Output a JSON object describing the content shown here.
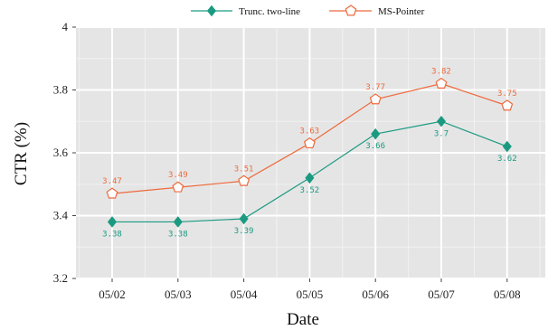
{
  "chart_data": {
    "type": "line",
    "x": [
      "05/02",
      "05/03",
      "05/04",
      "05/05",
      "05/06",
      "05/07",
      "05/08"
    ],
    "series": [
      {
        "name": "Trunc. two-line",
        "values": [
          3.38,
          3.38,
          3.39,
          3.52,
          3.66,
          3.7,
          3.62
        ],
        "labels": [
          "3.38",
          "3.38",
          "3.39",
          "3.52",
          "3.66",
          "3.7",
          "3.62"
        ],
        "color": "#1a9a80",
        "marker": "diamond-filled"
      },
      {
        "name": "MS-Pointer",
        "values": [
          3.47,
          3.49,
          3.51,
          3.63,
          3.77,
          3.82,
          3.75
        ],
        "labels": [
          "3.47",
          "3.49",
          "3.51",
          "3.63",
          "3.77",
          "3.82",
          "3.75"
        ],
        "color": "#ee6a3c",
        "marker": "pentagon-open"
      }
    ],
    "xlabel": "Date",
    "ylabel": "CTR (%)",
    "ylim": [
      3.2,
      4
    ],
    "yticks": [
      "3.2",
      "3.4",
      "3.6",
      "3.8",
      "4"
    ],
    "grid": true,
    "background": "#e5e5e5",
    "legend": "top-center"
  }
}
